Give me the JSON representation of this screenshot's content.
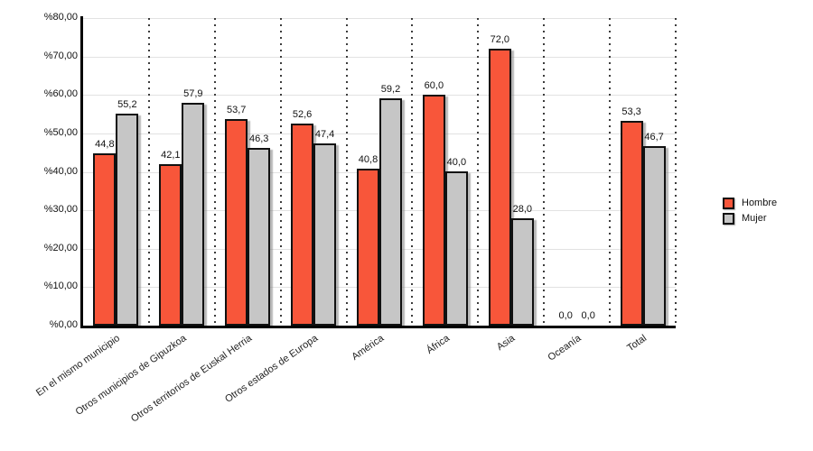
{
  "chart_data": {
    "type": "bar",
    "title": "",
    "xlabel": "",
    "ylabel": "",
    "categories": [
      "En el mismo municipio",
      "Otros municipios de Gipuzkoa",
      "Otros territorios de Euskal Herria",
      "Otros estados de Europa",
      "América",
      "África",
      "Asia",
      "Oceanía",
      "Total"
    ],
    "series": [
      {
        "name": "Hombre",
        "color": "#F8563A",
        "values": [
          44.8,
          42.1,
          53.7,
          52.6,
          40.8,
          60.0,
          72.0,
          0.0,
          53.3
        ],
        "labels": [
          "44,8",
          "42,1",
          "53,7",
          "52,6",
          "40,8",
          "60,0",
          "72,0",
          "0,0",
          "53,3"
        ]
      },
      {
        "name": "Mujer",
        "color": "#C6C6C6",
        "values": [
          55.2,
          57.9,
          46.3,
          47.4,
          59.2,
          40.0,
          28.0,
          0.0,
          46.7
        ],
        "labels": [
          "55,2",
          "57,9",
          "46,3",
          "47,4",
          "59,2",
          "40,0",
          "28,0",
          "0,0",
          "46,7"
        ]
      }
    ],
    "ylim": [
      0,
      80
    ],
    "ytick_step": 10,
    "ytick_labels": [
      "%0,00",
      "%10,00",
      "%20,00",
      "%30,00",
      "%40,00",
      "%50,00",
      "%60,00",
      "%70,00",
      "%80,00"
    ],
    "grid": "horizontal-solid, vertical-dotted-separators",
    "legend_position": "right",
    "colors": {
      "gridline": "#E2E2E2",
      "separator": "#3C3C3C",
      "axis": "#000000",
      "bar_border": "#111111",
      "background": "#FFFFFF"
    }
  }
}
